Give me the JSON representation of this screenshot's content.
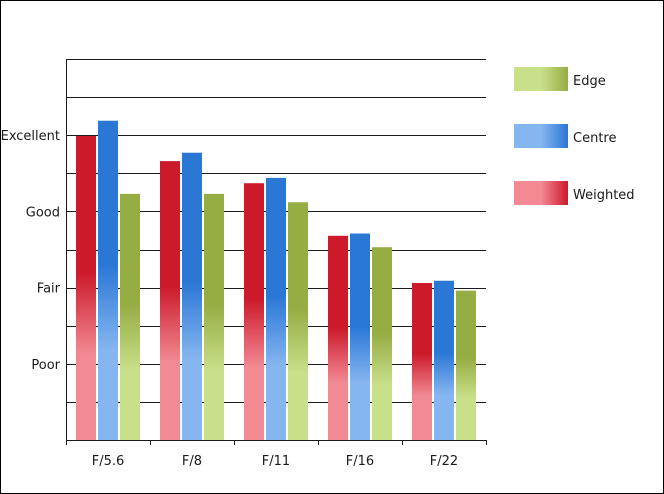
{
  "chart_data": {
    "type": "bar",
    "categories": [
      "F/5.6",
      "F/8",
      "F/11",
      "F/16",
      "F/22"
    ],
    "y_tick_labels": [
      {
        "label": "Poor",
        "value": 1
      },
      {
        "label": "Fair",
        "value": 2
      },
      {
        "label": "Good",
        "value": 3
      },
      {
        "label": "Excellent",
        "value": 4
      }
    ],
    "ylim": [
      0,
      5
    ],
    "grid": true,
    "legend_position": "right",
    "series": [
      {
        "name": "Weighted",
        "values": [
          3.99,
          3.66,
          3.37,
          2.68,
          2.06
        ],
        "colors": {
          "light": "#f28a94",
          "dark": "#cc1a2b"
        }
      },
      {
        "name": "Centre",
        "values": [
          4.19,
          3.77,
          3.44,
          2.71,
          2.09
        ],
        "colors": {
          "light": "#86b6f0",
          "dark": "#2a77d6"
        }
      },
      {
        "name": "Edge",
        "values": [
          3.23,
          3.23,
          3.12,
          2.53,
          1.96
        ],
        "colors": {
          "light": "#c9e08a",
          "dark": "#96ad44"
        }
      }
    ],
    "legend_order": [
      "Edge",
      "Centre",
      "Weighted"
    ],
    "title": "",
    "xlabel": "",
    "ylabel": ""
  }
}
